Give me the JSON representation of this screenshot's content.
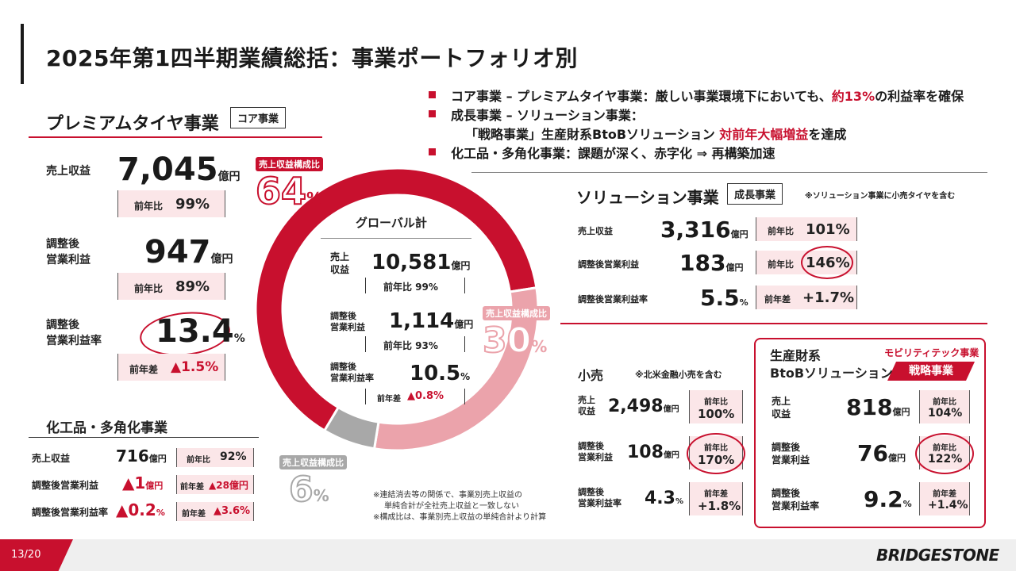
{
  "page": {
    "title": "2025年第1四半期業績総括：事業ポートフォリオ別",
    "page_number": "13/20",
    "brand": "BRIDGESTONE"
  },
  "bullets": [
    {
      "pre": "コア事業 – プレミアムタイヤ事業：厳しい事業環境下においても、",
      "highlight": "約13%",
      "post": "の利益率を確保"
    },
    {
      "pre": "成長事業 – ソリューション事業：",
      "highlight": "",
      "post": ""
    },
    {
      "pre": "「戦略事業」生産財系BtoBソリューション ",
      "highlight": "対前年大幅増益",
      "post": "を達成"
    },
    {
      "pre": "化工品・多角化事業：課題が深く、赤字化 ⇒ 再構築加速",
      "highlight": "",
      "post": ""
    }
  ],
  "premium": {
    "title": "プレミアムタイヤ事業",
    "tag": "コア事業",
    "revenue_label": "売上収益",
    "revenue": "7,045",
    "revenue_unit": "億円",
    "revenue_cmp_label": "前年比",
    "revenue_cmp": "99%",
    "op_label_1": "調整後",
    "op_label_2": "営業利益",
    "op": "947",
    "op_unit": "億円",
    "op_cmp_label": "前年比",
    "op_cmp": "89%",
    "margin_label_1": "調整後",
    "margin_label_2": "営業利益率",
    "margin": "13.4",
    "margin_unit": "%",
    "margin_cmp_label": "前年差",
    "margin_cmp": "▲1.5%"
  },
  "chemical": {
    "title": "化工品・多角化事業",
    "rows": [
      {
        "label": "売上収益",
        "value": "716",
        "unit": "億円",
        "cmp_label": "前年比",
        "cmp": "92%"
      },
      {
        "label": "調整後営業利益",
        "value": "▲1",
        "unit": "億円",
        "cmp_label": "前年差",
        "cmp": "▲28億円"
      },
      {
        "label": "調整後営業利益率",
        "value": "▲0.2",
        "unit": "%",
        "cmp_label": "前年差",
        "cmp": "▲3.6%"
      }
    ]
  },
  "donut": {
    "center_title": "グローバル計",
    "revenue_label_1": "売上",
    "revenue_label_2": "収益",
    "revenue": "10,581",
    "revenue_unit": "億円",
    "revenue_cmp": "前年比 99%",
    "op_label_1": "調整後",
    "op_label_2": "営業利益",
    "op": "1,114",
    "op_unit": "億円",
    "op_cmp": "前年比 93%",
    "margin_label_1": "調整後",
    "margin_label_2": "営業利益率",
    "margin": "10.5",
    "margin_unit": "%",
    "margin_cmp_label": "前年差",
    "margin_cmp": "▲0.8%",
    "segments": [
      {
        "share": 64,
        "color": "#c8102e",
        "label": "売上収益構成比",
        "value": "64",
        "unit": "%"
      },
      {
        "share": 30,
        "color": "#eba3ab",
        "label": "売上収益構成比",
        "value": "30",
        "unit": "%"
      },
      {
        "share": 6,
        "color": "#a8a8a8",
        "label": "売上収益構成比",
        "value": "6",
        "unit": "%"
      }
    ]
  },
  "notes": [
    "※連結消去等の関係で、事業別売上収益の",
    "単純合計が全社売上収益と一致しない",
    "※構成比は、事業別売上収益の単純合計より計算"
  ],
  "solution": {
    "title": "ソリューション事業",
    "tag": "成長事業",
    "note": "※ソリューション事業に小売タイヤを含む",
    "rows": [
      {
        "label": "売上収益",
        "value": "3,316",
        "unit": "億円",
        "cmp_label": "前年比",
        "cmp": "101%"
      },
      {
        "label": "調整後営業利益",
        "value": "183",
        "unit": "億円",
        "cmp_label": "前年比",
        "cmp": "146%"
      },
      {
        "label": "調整後営業利益率",
        "value": "5.5",
        "unit": "%",
        "cmp_label": "前年差",
        "cmp": "+1.7%"
      }
    ]
  },
  "retail": {
    "title": "小売",
    "note": "※北米金融小売を含む",
    "rows": [
      {
        "label_1": "売上",
        "label_2": "収益",
        "value": "2,498",
        "unit": "億円",
        "cmp_label": "前年比",
        "cmp": "100%"
      },
      {
        "label_1": "調整後",
        "label_2": "営業利益",
        "value": "108",
        "unit": "億円",
        "cmp_label": "前年比",
        "cmp": "170%"
      },
      {
        "label_1": "調整後",
        "label_2": "営業利益率",
        "value": "4.3",
        "unit": "%",
        "cmp_label": "前年差",
        "cmp": "+1.8%"
      }
    ]
  },
  "b2b": {
    "title_1": "生産財系",
    "title_2": "BtoBソリューション",
    "mobility": "モビリティテック事業",
    "strategic": "戦略事業",
    "rows": [
      {
        "label_1": "売上",
        "label_2": "収益",
        "value": "818",
        "unit": "億円",
        "cmp_label": "前年比",
        "cmp": "104%"
      },
      {
        "label_1": "調整後",
        "label_2": "営業利益",
        "value": "76",
        "unit": "億円",
        "cmp_label": "前年比",
        "cmp": "122%"
      },
      {
        "label_1": "調整後",
        "label_2": "営業利益率",
        "value": "9.2",
        "unit": "%",
        "cmp_label": "前年差",
        "cmp": "+1.4%"
      }
    ]
  },
  "colors": {
    "accent": "#c8102e",
    "pink": "#eba3ab",
    "gray": "#a8a8a8",
    "light": "#fbe6e8"
  }
}
